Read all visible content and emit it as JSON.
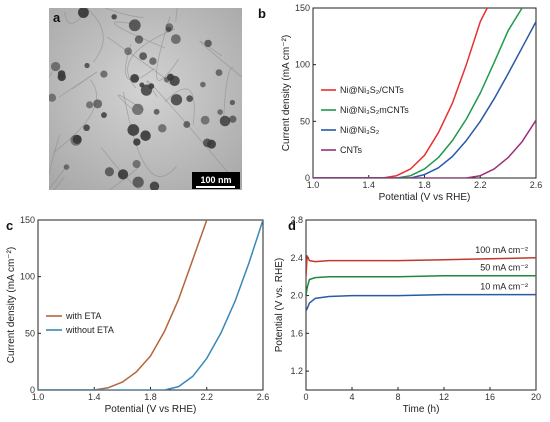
{
  "panels": {
    "a": {
      "label": "a",
      "scale_bar": "100 nm"
    }
  },
  "chart_data": [
    {
      "panel": "b",
      "type": "line",
      "xlabel": "Potential (V vs RHE)",
      "ylabel": "Current density (mA cm⁻²)",
      "xlim": [
        1.0,
        2.6
      ],
      "ylim": [
        0,
        150
      ],
      "xticks": [
        "1.0",
        "1.4",
        "1.8",
        "2.2",
        "2.6"
      ],
      "yticks": [
        "0",
        "50",
        "100",
        "150"
      ],
      "grid": false,
      "legend_position": "center-left",
      "series": [
        {
          "name": "Ni@Ni₃S₂/CNTs",
          "color": "#e8312f",
          "x": [
            1.0,
            1.5,
            1.6,
            1.7,
            1.8,
            1.9,
            2.0,
            2.1,
            2.2,
            2.25
          ],
          "y": [
            0,
            0,
            2,
            8,
            20,
            40,
            66,
            100,
            138,
            150
          ]
        },
        {
          "name": "Ni@Ni₃S₂mCNTs",
          "color": "#1f9a4a",
          "x": [
            1.0,
            1.6,
            1.7,
            1.8,
            1.9,
            2.0,
            2.1,
            2.2,
            2.3,
            2.4,
            2.5
          ],
          "y": [
            0,
            0,
            2,
            8,
            18,
            33,
            52,
            75,
            102,
            130,
            150
          ]
        },
        {
          "name": "Ni@Ni₃S₂",
          "color": "#2a5aa6",
          "x": [
            1.0,
            1.7,
            1.8,
            1.9,
            2.0,
            2.1,
            2.2,
            2.3,
            2.4,
            2.5,
            2.6
          ],
          "y": [
            0,
            0,
            3,
            9,
            19,
            33,
            50,
            70,
            92,
            115,
            138
          ]
        },
        {
          "name": "CNTs",
          "color": "#9a2f7c",
          "x": [
            1.0,
            2.1,
            2.2,
            2.3,
            2.4,
            2.5,
            2.6
          ],
          "y": [
            0,
            0,
            2,
            8,
            18,
            32,
            51
          ]
        }
      ]
    },
    {
      "panel": "c",
      "type": "line",
      "xlabel": "Potential (V vs RHE)",
      "ylabel": "Current density (mA cm⁻²)",
      "xlim": [
        1.0,
        2.6
      ],
      "ylim": [
        0,
        150
      ],
      "xticks": [
        "1.0",
        "1.4",
        "1.8",
        "2.2",
        "2.6"
      ],
      "yticks": [
        "0",
        "50",
        "100",
        "150"
      ],
      "grid": false,
      "legend_position": "center-left",
      "series": [
        {
          "name": "with ETA",
          "color": "#b5653a",
          "x": [
            1.0,
            1.4,
            1.5,
            1.6,
            1.7,
            1.8,
            1.9,
            2.0,
            2.1,
            2.2
          ],
          "y": [
            0,
            0,
            2,
            7,
            16,
            30,
            52,
            80,
            115,
            150
          ]
        },
        {
          "name": "without ETA",
          "color": "#3a87b8",
          "x": [
            1.0,
            1.9,
            2.0,
            2.1,
            2.2,
            2.3,
            2.4,
            2.5,
            2.6
          ],
          "y": [
            0,
            0,
            3,
            12,
            28,
            50,
            78,
            112,
            150
          ]
        }
      ]
    },
    {
      "panel": "d",
      "type": "line",
      "xlabel": "Time (h)",
      "ylabel": "Potential (V vs. RHE)",
      "xlim": [
        0,
        20
      ],
      "ylim": [
        1.0,
        2.8
      ],
      "xticks": [
        "0",
        "4",
        "8",
        "12",
        "16",
        "20"
      ],
      "yticks": [
        "1.2",
        "1.6",
        "2.0",
        "2.4",
        "2.8"
      ],
      "grid": false,
      "series": [
        {
          "name": "100 mA cm⁻²",
          "color": "#c0392b",
          "x": [
            0,
            0.1,
            0.3,
            0.8,
            2,
            4,
            8,
            12,
            16,
            20
          ],
          "y": [
            2.2,
            2.42,
            2.37,
            2.36,
            2.37,
            2.37,
            2.37,
            2.38,
            2.39,
            2.4
          ]
        },
        {
          "name": "50 mA cm⁻²",
          "color": "#1f8a3a",
          "x": [
            0,
            0.1,
            0.3,
            0.8,
            2,
            4,
            8,
            12,
            16,
            20
          ],
          "y": [
            2.0,
            2.08,
            2.17,
            2.19,
            2.2,
            2.2,
            2.2,
            2.21,
            2.21,
            2.21
          ]
        },
        {
          "name": "10 mA cm⁻²",
          "color": "#2a5aa6",
          "x": [
            0,
            0.1,
            0.3,
            0.8,
            2,
            4,
            8,
            12,
            16,
            20
          ],
          "y": [
            1.84,
            1.86,
            1.92,
            1.97,
            1.99,
            2.0,
            2.0,
            2.01,
            2.01,
            2.01
          ]
        }
      ]
    }
  ]
}
